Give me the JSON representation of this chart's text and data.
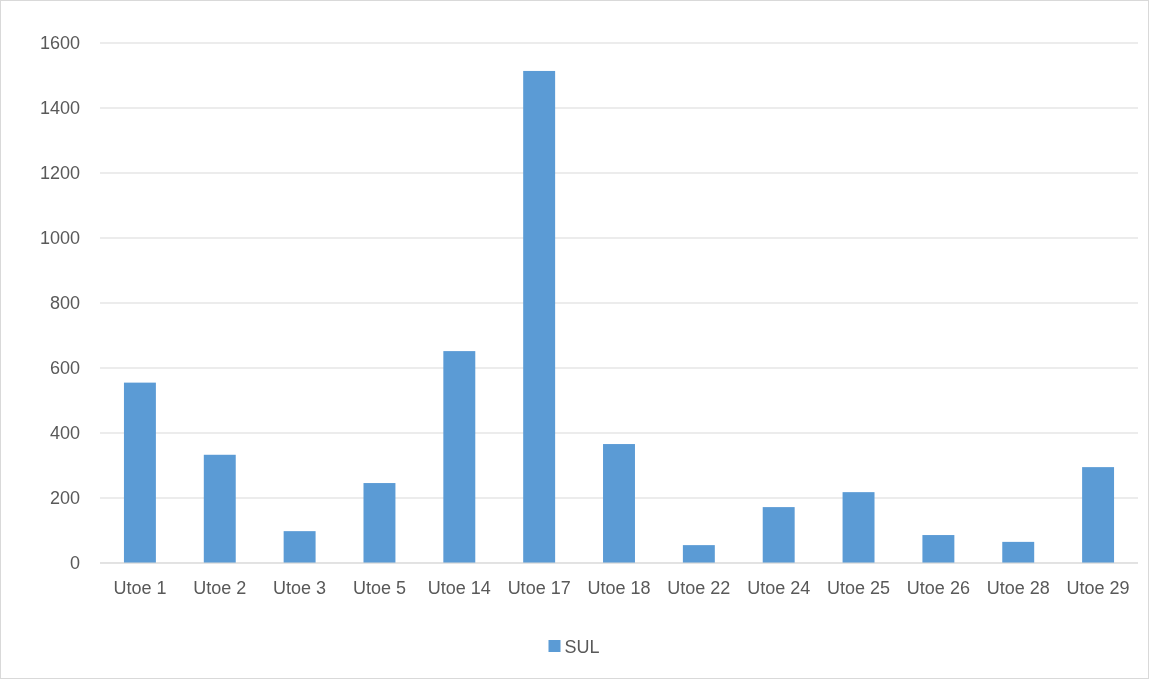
{
  "chart_data": {
    "type": "bar",
    "categories": [
      "Utoe 1",
      "Utoe 2",
      "Utoe 3",
      "Utoe 5",
      "Utoe 14",
      "Utoe 17",
      "Utoe 18",
      "Utoe 22",
      "Utoe 24",
      "Utoe 25",
      "Utoe 26",
      "Utoe 28",
      "Utoe 29"
    ],
    "series": [
      {
        "name": "SUL",
        "color": "#5b9bd5",
        "values": [
          555,
          333,
          98,
          246,
          652,
          1514,
          366,
          55,
          172,
          218,
          86,
          65,
          295
        ]
      }
    ],
    "ylim": [
      0,
      1600
    ],
    "yticks": [
      0,
      200,
      400,
      600,
      800,
      1000,
      1200,
      1400,
      1600
    ],
    "grid": "y",
    "legend": "bottom"
  }
}
